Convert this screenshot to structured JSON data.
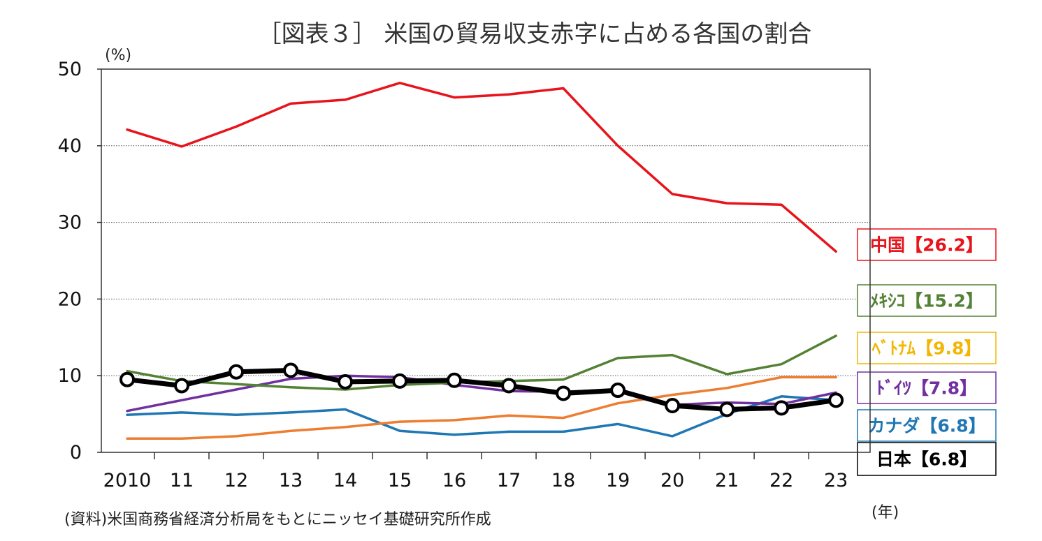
{
  "chart_data": {
    "type": "line",
    "title": "［図表３］ 米国の貿易収支赤字に占める各国の割合",
    "y_unit": "(%)",
    "x_unit": "(年)",
    "source": "(資料)米国商務省経済分析局をもとにニッセイ基礎研究所作成",
    "categories": [
      "2010",
      "11",
      "12",
      "13",
      "14",
      "15",
      "16",
      "17",
      "18",
      "19",
      "20",
      "21",
      "22",
      "23"
    ],
    "ylim": [
      0,
      50
    ],
    "yticks": [
      "0",
      "10",
      "20",
      "30",
      "40",
      "50"
    ],
    "grid": "horizontal-dotted",
    "legend_placement": "right",
    "series": [
      {
        "name": "中国",
        "label": "中国【26.2】",
        "color": "#e8131b",
        "values": [
          42.1,
          39.9,
          42.5,
          45.5,
          46.0,
          48.2,
          46.3,
          46.7,
          47.5,
          40.0,
          33.7,
          32.5,
          32.3,
          26.2
        ]
      },
      {
        "name": "メキシコ",
        "label": "ﾒｷｼｺ【15.2】",
        "color": "#548235",
        "values": [
          10.6,
          9.3,
          8.9,
          8.5,
          8.2,
          8.8,
          9.1,
          9.3,
          9.5,
          12.3,
          12.7,
          10.2,
          11.5,
          15.2
        ]
      },
      {
        "name": "ベトナム",
        "label": "ﾍﾞﾄﾅﾑ【9.8】",
        "color": "#ed7d31",
        "label_color": "#f2b705",
        "values": [
          1.8,
          1.8,
          2.1,
          2.8,
          3.3,
          4.0,
          4.2,
          4.8,
          4.5,
          6.4,
          7.5,
          8.4,
          9.8,
          9.8
        ]
      },
      {
        "name": "ドイツ",
        "label": "ﾄﾞｲﾂ【7.8】",
        "color": "#7030a0",
        "values": [
          5.4,
          6.8,
          8.2,
          9.6,
          10.0,
          9.8,
          8.8,
          8.0,
          7.9,
          8.2,
          6.2,
          6.5,
          6.3,
          7.8
        ]
      },
      {
        "name": "カナダ",
        "label": "カナダ【6.8】",
        "color": "#1f77b4",
        "values": [
          4.9,
          5.2,
          4.9,
          5.2,
          5.6,
          2.8,
          2.3,
          2.7,
          2.7,
          3.7,
          2.1,
          5.0,
          7.3,
          6.8
        ]
      },
      {
        "name": "日本",
        "label": "日本【6.8】",
        "color": "#000000",
        "values": [
          9.5,
          8.7,
          10.5,
          10.7,
          9.2,
          9.3,
          9.4,
          8.7,
          7.7,
          8.1,
          6.1,
          5.6,
          5.8,
          6.8
        ]
      }
    ]
  }
}
